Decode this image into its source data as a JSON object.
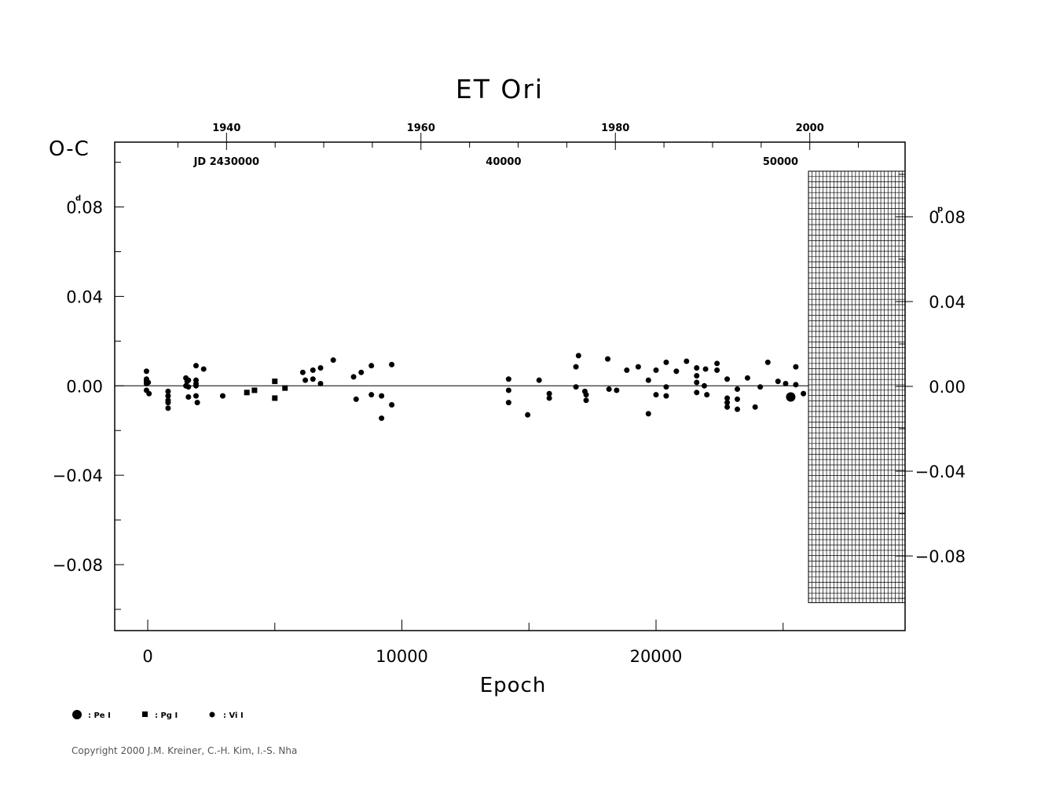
{
  "chart_data": {
    "type": "scatter",
    "title": "ET  Ori",
    "ylabel": "O-C",
    "xlabel": "Epoch",
    "y_unit_left": "d",
    "y_unit_right": "p",
    "xlim": [
      -1300,
      29800
    ],
    "ylim": [
      -0.1095,
      0.109
    ],
    "x_ticks": [
      {
        "value": 0,
        "label": "0"
      },
      {
        "value": 10000,
        "label": "10000"
      },
      {
        "value": 20000,
        "label": "20000"
      }
    ],
    "y_ticks_left": [
      {
        "value": 0.08,
        "label": "0.08"
      },
      {
        "value": 0.04,
        "label": "0.04"
      },
      {
        "value": 0.0,
        "label": "0.00"
      },
      {
        "value": -0.04,
        "label": "−0.04"
      },
      {
        "value": -0.08,
        "label": "−0.08"
      }
    ],
    "y_ticks_right": [
      {
        "value": 0.08,
        "label": "0.08"
      },
      {
        "value": 0.04,
        "label": "0.04"
      },
      {
        "value": 0.0,
        "label": "0.00"
      },
      {
        "value": -0.04,
        "label": "−0.04"
      },
      {
        "value": -0.08,
        "label": "−0.08"
      }
    ],
    "top_year_axis": [
      {
        "label": "1940",
        "epoch": 3100
      },
      {
        "label": "1960",
        "epoch": 10750
      },
      {
        "label": "1980",
        "epoch": 18400
      },
      {
        "label": "2000",
        "epoch": 26050
      }
    ],
    "top_jd_labels": [
      {
        "label": "JD  2430000",
        "epoch": 3100
      },
      {
        "label": "40000",
        "epoch": 14000
      },
      {
        "label": "50000",
        "epoch": 24900
      }
    ],
    "hatched_region": {
      "x_from": 26000,
      "x_to": 29800,
      "y_from": -0.097,
      "y_to": 0.096
    },
    "legend": [
      {
        "symbol": "large-circle",
        "label": ": Pe I"
      },
      {
        "symbol": "square",
        "label": ": Pg I"
      },
      {
        "symbol": "small-circle",
        "label": ": Vi I"
      }
    ],
    "series": [
      {
        "name": "Pe I",
        "marker": "large-circle",
        "points": [
          [
            25300,
            -0.005
          ]
        ]
      },
      {
        "name": "Pg I",
        "marker": "square",
        "points": [
          [
            3900,
            -0.003
          ],
          [
            4200,
            -0.002
          ],
          [
            5000,
            0.002
          ],
          [
            5000,
            -0.0055
          ],
          [
            5400,
            -0.001
          ]
        ]
      },
      {
        "name": "Vi I",
        "marker": "small-circle",
        "points": [
          [
            -50,
            0.0065
          ],
          [
            -50,
            0.003
          ],
          [
            -50,
            0.002
          ],
          [
            -50,
            0.001
          ],
          [
            -50,
            -0.002
          ],
          [
            50,
            -0.0035
          ],
          [
            20,
            0.0015
          ],
          [
            800,
            -0.0025
          ],
          [
            800,
            -0.0045
          ],
          [
            800,
            -0.0065
          ],
          [
            800,
            -0.0075
          ],
          [
            800,
            -0.01
          ],
          [
            1500,
            0.0035
          ],
          [
            1500,
            0.0
          ],
          [
            1550,
            0.002
          ],
          [
            1600,
            0.0025
          ],
          [
            1600,
            -0.0005
          ],
          [
            1600,
            -0.005
          ],
          [
            1900,
            0.009
          ],
          [
            1900,
            0.0025
          ],
          [
            1900,
            0.001
          ],
          [
            1900,
            0.0
          ],
          [
            1900,
            -0.0045
          ],
          [
            1950,
            -0.0075
          ],
          [
            2200,
            0.0075
          ],
          [
            2950,
            -0.0045
          ],
          [
            6100,
            0.006
          ],
          [
            6200,
            0.0025
          ],
          [
            6500,
            0.007
          ],
          [
            6500,
            0.003
          ],
          [
            6800,
            0.008
          ],
          [
            6800,
            0.001
          ],
          [
            7300,
            0.0115
          ],
          [
            8100,
            0.004
          ],
          [
            8200,
            -0.006
          ],
          [
            8400,
            0.006
          ],
          [
            8800,
            0.009
          ],
          [
            8800,
            -0.004
          ],
          [
            9200,
            -0.0045
          ],
          [
            9200,
            -0.0145
          ],
          [
            9600,
            0.0095
          ],
          [
            9600,
            -0.0085
          ],
          [
            14200,
            0.003
          ],
          [
            14200,
            -0.002
          ],
          [
            14200,
            -0.0075
          ],
          [
            14950,
            -0.013
          ],
          [
            15400,
            0.0025
          ],
          [
            15800,
            -0.0035
          ],
          [
            15800,
            -0.0055
          ],
          [
            16850,
            0.0085
          ],
          [
            16850,
            -0.0005
          ],
          [
            16950,
            0.0135
          ],
          [
            17200,
            -0.0025
          ],
          [
            17250,
            -0.004
          ],
          [
            17250,
            -0.0065
          ],
          [
            18100,
            0.012
          ],
          [
            18150,
            -0.0015
          ],
          [
            18450,
            -0.002
          ],
          [
            18850,
            0.007
          ],
          [
            19300,
            0.0085
          ],
          [
            19700,
            0.0025
          ],
          [
            19700,
            -0.0125
          ],
          [
            20000,
            0.007
          ],
          [
            20000,
            -0.004
          ],
          [
            20400,
            0.0105
          ],
          [
            20400,
            -0.0005
          ],
          [
            20400,
            -0.0045
          ],
          [
            20800,
            0.0065
          ],
          [
            21200,
            0.011
          ],
          [
            21600,
            0.008
          ],
          [
            21600,
            0.0045
          ],
          [
            21600,
            0.0015
          ],
          [
            21600,
            -0.003
          ],
          [
            21900,
            0.0
          ],
          [
            21950,
            0.0075
          ],
          [
            22000,
            -0.004
          ],
          [
            22400,
            0.01
          ],
          [
            22400,
            0.007
          ],
          [
            22800,
            0.003
          ],
          [
            22800,
            -0.0055
          ],
          [
            22800,
            -0.0075
          ],
          [
            22800,
            -0.0095
          ],
          [
            23200,
            -0.0015
          ],
          [
            23200,
            -0.006
          ],
          [
            23200,
            -0.0105
          ],
          [
            23600,
            0.0035
          ],
          [
            23900,
            -0.0095
          ],
          [
            24100,
            -0.0005
          ],
          [
            24400,
            0.0105
          ],
          [
            24800,
            0.002
          ],
          [
            25100,
            0.001
          ],
          [
            25500,
            0.0085
          ],
          [
            25500,
            0.0005
          ],
          [
            25800,
            -0.0035
          ]
        ]
      }
    ]
  },
  "copyright": "Copyright 2000 J.M. Kreiner, C.-H. Kim, I.-S. Nha"
}
